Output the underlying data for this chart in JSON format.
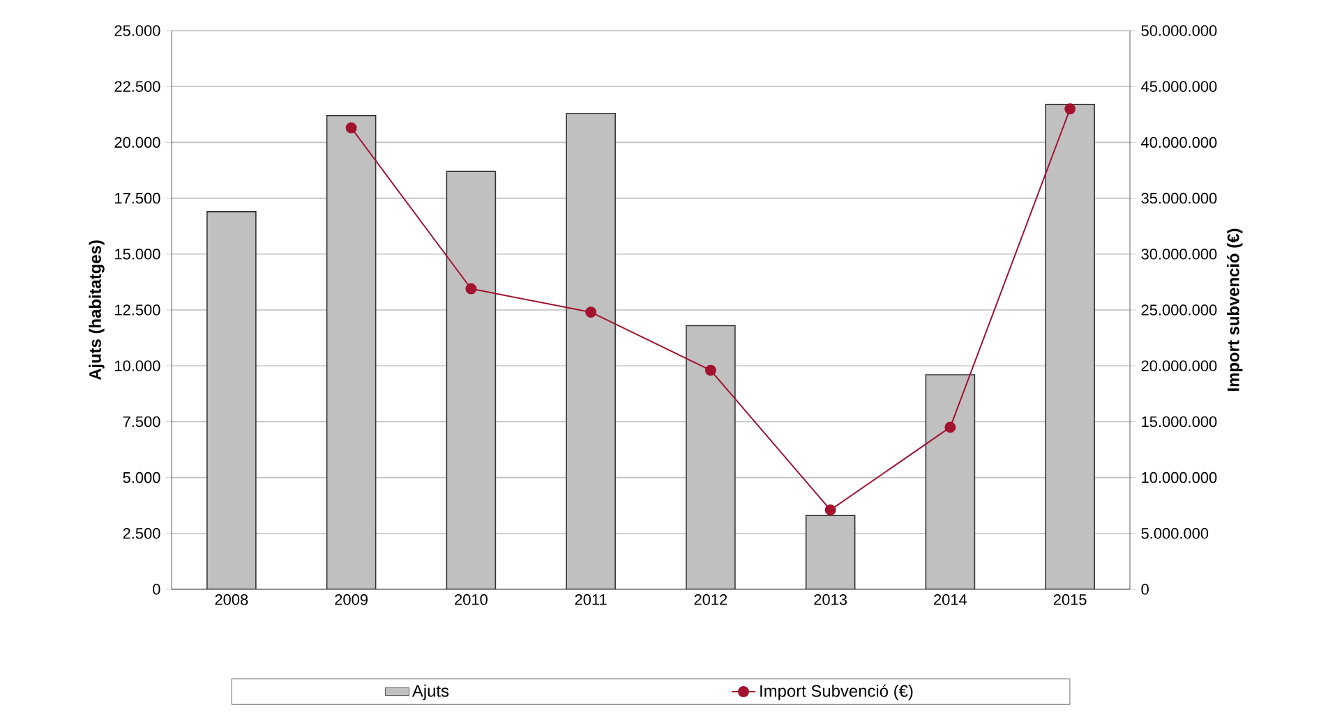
{
  "chart_data": {
    "type": "bar",
    "ylabel": "Ajuts (habitatges)",
    "y2label": "Import subvenció (€)",
    "categories": [
      "2008",
      "2009",
      "2010",
      "2011",
      "2012",
      "2013",
      "2014",
      "2015"
    ],
    "series": [
      {
        "name": "Ajuts",
        "color": "#c0c0c0",
        "values": [
          16900,
          21200,
          18700,
          21300,
          11800,
          3300,
          9600,
          21700
        ]
      },
      {
        "name": "Import Subvenció (€)",
        "type": "line",
        "axis": "y2",
        "color": "#a3122e",
        "marker": "circle",
        "values": [
          null,
          41300000,
          26900000,
          24800000,
          19600000,
          7100000,
          14500000,
          43000000
        ]
      }
    ],
    "ylim": [
      0,
      25000
    ],
    "yticks": [
      {
        "value": 0,
        "label": "0"
      },
      {
        "value": 2500,
        "label": "2.500"
      },
      {
        "value": 5000,
        "label": "5.000"
      },
      {
        "value": 7500,
        "label": "7.500"
      },
      {
        "value": 10000,
        "label": "10.000"
      },
      {
        "value": 12500,
        "label": "12.500"
      },
      {
        "value": 15000,
        "label": "15.000"
      },
      {
        "value": 17500,
        "label": "17.500"
      },
      {
        "value": 20000,
        "label": "20.000"
      },
      {
        "value": 22500,
        "label": "22.500"
      },
      {
        "value": 25000,
        "label": "25.000"
      }
    ],
    "y2lim": [
      0,
      50000000
    ],
    "y2ticks": [
      {
        "value": 0,
        "label": "0"
      },
      {
        "value": 5000000,
        "label": "5.000.000"
      },
      {
        "value": 10000000,
        "label": "10.000.000"
      },
      {
        "value": 15000000,
        "label": "15.000.000"
      },
      {
        "value": 20000000,
        "label": "20.000.000"
      },
      {
        "value": 25000000,
        "label": "25.000.000"
      },
      {
        "value": 30000000,
        "label": "30.000.000"
      },
      {
        "value": 35000000,
        "label": "35.000.000"
      },
      {
        "value": 40000000,
        "label": "40.000.000"
      },
      {
        "value": 45000000,
        "label": "45.000.000"
      },
      {
        "value": 50000000,
        "label": "50.000.000"
      }
    ],
    "grid": "y",
    "legend": "bottom"
  }
}
